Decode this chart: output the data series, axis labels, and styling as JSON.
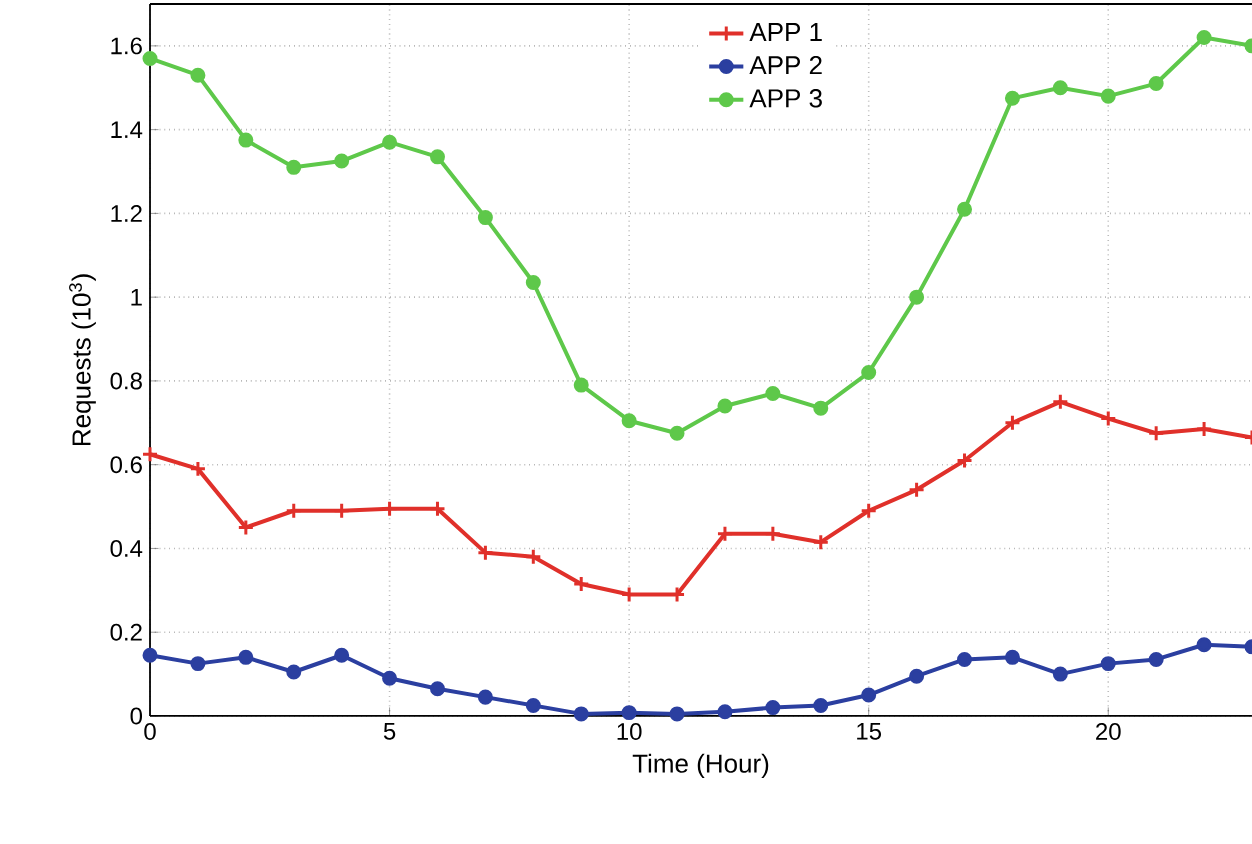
{
  "chart_data": {
    "type": "line",
    "xlabel": "Time (Hour)",
    "ylabel": "Requests (10$^{3}$)",
    "x": [
      0,
      1,
      2,
      3,
      4,
      5,
      6,
      7,
      8,
      9,
      10,
      11,
      12,
      13,
      14,
      15,
      16,
      17,
      18,
      19,
      20,
      21,
      22,
      23
    ],
    "series": [
      {
        "name": "APP 1",
        "color": "#e0302a",
        "marker": "cross",
        "values": [
          0.625,
          0.59,
          0.45,
          0.49,
          0.49,
          0.495,
          0.495,
          0.39,
          0.38,
          0.315,
          0.29,
          0.29,
          0.435,
          0.435,
          0.415,
          0.49,
          0.54,
          0.61,
          0.7,
          0.75,
          0.71,
          0.675,
          0.685,
          0.665
        ]
      },
      {
        "name": "APP 2",
        "color": "#2b3fa0",
        "marker": "circle",
        "values": [
          0.145,
          0.125,
          0.14,
          0.105,
          0.145,
          0.09,
          0.065,
          0.045,
          0.025,
          0.005,
          0.008,
          0.005,
          0.01,
          0.02,
          0.025,
          0.05,
          0.095,
          0.135,
          0.14,
          0.1,
          0.125,
          0.135,
          0.17,
          0.165
        ]
      },
      {
        "name": "APP 3",
        "color": "#5ec84a",
        "marker": "circle",
        "values": [
          1.57,
          1.53,
          1.375,
          1.31,
          1.325,
          1.37,
          1.335,
          1.19,
          1.035,
          0.79,
          0.705,
          0.675,
          0.74,
          0.77,
          0.735,
          0.82,
          1.0,
          1.21,
          1.475,
          1.5,
          1.48,
          1.51,
          1.62,
          1.6
        ]
      }
    ],
    "xlim": [
      0,
      23
    ],
    "xticks": [
      0,
      5,
      10,
      15,
      20
    ],
    "ylim": [
      0,
      1.7
    ],
    "yticks": [
      0,
      0.2,
      0.4,
      0.6,
      0.8,
      1,
      1.2,
      1.4,
      1.6
    ],
    "grid": true,
    "legend": "top",
    "line_style": "solid"
  }
}
